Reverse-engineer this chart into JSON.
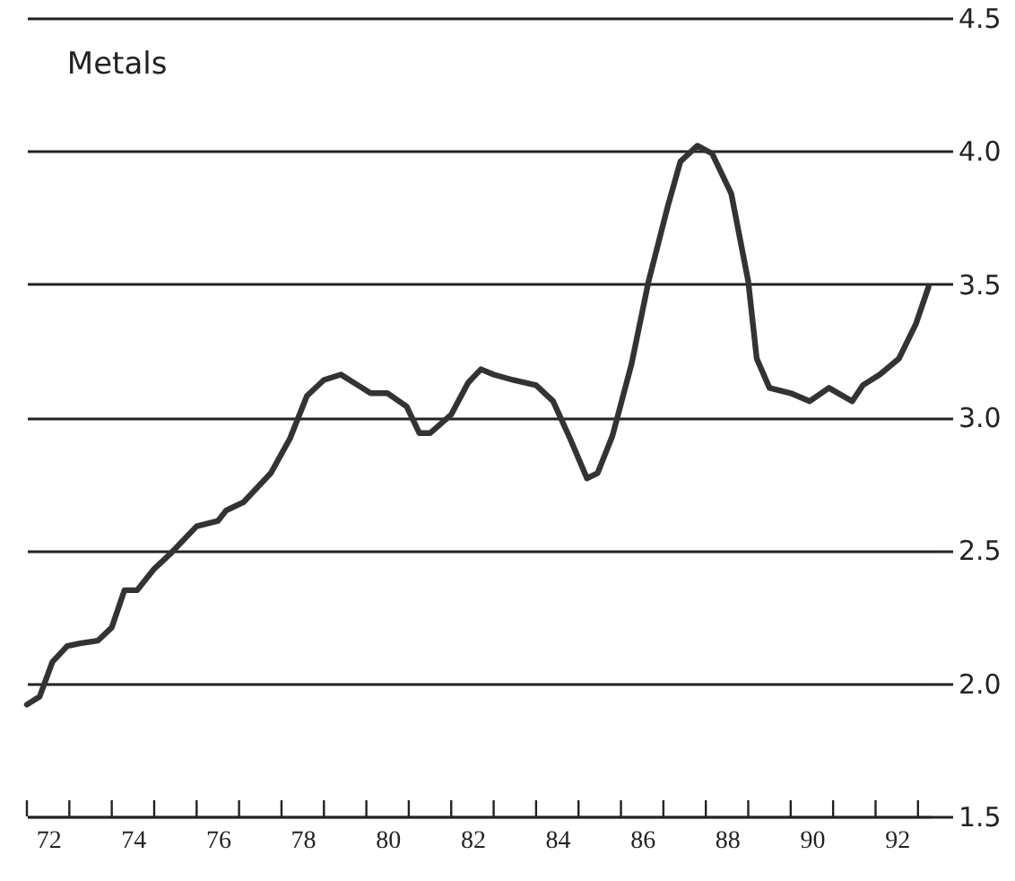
{
  "chart_data": {
    "type": "line",
    "title": "Metals",
    "x": [
      71.5,
      71.8,
      72.1,
      72.45,
      72.75,
      73.17,
      73.5,
      73.8,
      74.1,
      74.5,
      74.9,
      75.5,
      76.0,
      76.2,
      76.6,
      77.25,
      77.7,
      78.1,
      78.5,
      78.9,
      79.3,
      79.6,
      80.0,
      80.45,
      80.75,
      81.0,
      81.5,
      81.9,
      82.2,
      82.5,
      82.95,
      83.5,
      83.9,
      84.3,
      84.7,
      84.95,
      85.3,
      85.75,
      86.15,
      86.6,
      86.9,
      87.3,
      87.65,
      88.1,
      88.5,
      88.7,
      89.0,
      89.5,
      89.95,
      90.4,
      90.95,
      91.2,
      91.6,
      92.05,
      92.45,
      92.75
    ],
    "series": [
      {
        "color": "#333333",
        "values": [
          1.92,
          1.95,
          2.08,
          2.14,
          2.15,
          2.16,
          2.21,
          2.35,
          2.35,
          2.43,
          2.49,
          2.59,
          2.61,
          2.65,
          2.68,
          2.79,
          2.92,
          3.08,
          3.14,
          3.16,
          3.12,
          3.09,
          3.09,
          3.04,
          2.94,
          2.94,
          3.01,
          3.13,
          3.18,
          3.16,
          3.14,
          3.12,
          3.06,
          2.92,
          2.77,
          2.79,
          2.93,
          3.2,
          3.51,
          3.79,
          3.96,
          4.02,
          3.99,
          3.84,
          3.51,
          3.22,
          3.11,
          3.09,
          3.06,
          3.11,
          3.06,
          3.12,
          3.16,
          3.22,
          3.35,
          3.49
        ]
      }
    ],
    "xlim": [
      71.5,
      92.8
    ],
    "xticks": [
      {
        "value": 71.5,
        "label": null
      },
      72,
      {
        "value": 72.5,
        "label": null
      },
      {
        "value": 73.5,
        "label": null
      },
      74,
      {
        "value": 74.5,
        "label": null
      },
      {
        "value": 75.5,
        "label": null
      },
      76,
      {
        "value": 76.5,
        "label": null
      },
      {
        "value": 77.5,
        "label": null
      },
      78,
      {
        "value": 78.5,
        "label": null
      },
      {
        "value": 79.5,
        "label": null
      },
      80,
      {
        "value": 80.5,
        "label": null
      },
      {
        "value": 81.5,
        "label": null
      },
      82,
      {
        "value": 82.5,
        "label": null
      },
      {
        "value": 83.5,
        "label": null
      },
      84,
      {
        "value": 84.5,
        "label": null
      },
      {
        "value": 85.5,
        "label": null
      },
      86,
      {
        "value": 86.5,
        "label": null
      },
      {
        "value": 87.5,
        "label": null
      },
      88,
      {
        "value": 88.5,
        "label": null
      },
      {
        "value": 89.5,
        "label": null
      },
      90,
      {
        "value": 90.5,
        "label": null
      },
      {
        "value": 91.5,
        "label": null
      },
      92,
      {
        "value": 92.5,
        "label": null
      }
    ],
    "ylim": [
      1.5,
      4.5
    ],
    "yticks": [
      1.5,
      {
        "value": 2,
        "label": "2.0"
      },
      2.5,
      {
        "value": 3,
        "label": "3.0"
      },
      3.5,
      {
        "value": 4,
        "label": "4.0"
      },
      4.5
    ],
    "grid": "y",
    "line_style": "solid",
    "marker": "none"
  }
}
